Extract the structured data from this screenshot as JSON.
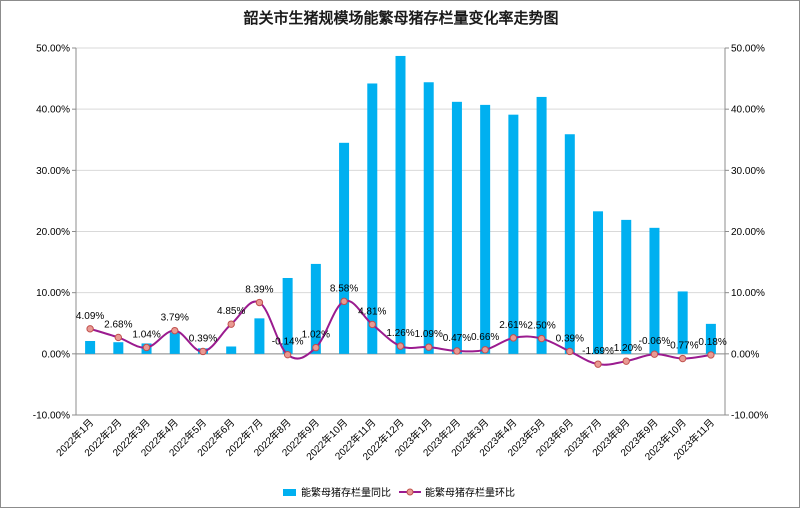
{
  "chart_data": {
    "type": "bar+line",
    "title": "韶关市生猪规模场能繁母猪存栏量变化率走势图",
    "categories": [
      "2022年1月",
      "2022年2月",
      "2022年3月",
      "2022年4月",
      "2022年5月",
      "2022年6月",
      "2022年7月",
      "2022年8月",
      "2022年9月",
      "2022年10月",
      "2022年11月",
      "2022年12月",
      "2023年1月",
      "2023年2月",
      "2023年3月",
      "2023年4月",
      "2023年5月",
      "2023年6月",
      "2023年7月",
      "2023年8月",
      "2023年9月",
      "2023年10月",
      "2023年11月"
    ],
    "series": [
      {
        "name": "能繁母猪存栏量同比",
        "type": "bar",
        "axis": "left",
        "color": "#00b0f0",
        "values": [
          2.1,
          1.9,
          1.7,
          3.5,
          0.9,
          1.2,
          5.8,
          12.4,
          14.7,
          34.5,
          44.2,
          48.7,
          44.4,
          41.2,
          40.7,
          39.1,
          42.0,
          35.9,
          23.3,
          21.9,
          20.6,
          10.2,
          4.9
        ],
        "value_format": "percent"
      },
      {
        "name": "能繁母猪存栏量环比",
        "type": "line",
        "axis": "right",
        "color": "#9b1b8f",
        "marker_color": "#e99a93",
        "values": [
          4.09,
          2.68,
          1.04,
          3.79,
          0.39,
          4.85,
          8.39,
          -0.14,
          1.02,
          8.58,
          4.81,
          1.26,
          1.09,
          0.47,
          0.66,
          2.61,
          2.5,
          0.39,
          -1.69,
          -1.2,
          -0.06,
          -0.77,
          -0.18
        ],
        "data_labels": [
          "4.09%",
          "2.68%",
          "1.04%",
          "3.79%",
          "0.39%",
          "4.85%",
          "8.39%",
          "-0.14%",
          "1.02%",
          "8.58%",
          "4.81%",
          "1.26%",
          "1.09%",
          "0.47%",
          "0.66%",
          "2.61%",
          "2.50%",
          "0.39%",
          "-1.69%",
          "-1.20%",
          "-0.06%",
          "-0.77%",
          "-0.18%"
        ]
      }
    ],
    "y_left": {
      "ylim": [
        -10,
        50
      ],
      "ticks": [
        "-10.00%",
        "0.00%",
        "10.00%",
        "20.00%",
        "30.00%",
        "40.00%",
        "50.00%"
      ]
    },
    "y_right": {
      "ylim": [
        -10,
        50
      ],
      "ticks": [
        "-10.00%",
        "0.00%",
        "10.00%",
        "20.00%",
        "30.00%",
        "40.00%",
        "50.00%"
      ]
    },
    "grid": "horizontal",
    "legend": "bottom-center"
  }
}
